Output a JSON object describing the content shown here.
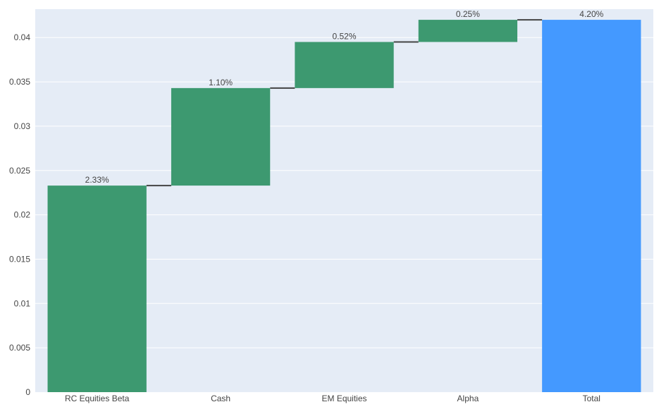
{
  "chart_data": {
    "type": "bar",
    "subtype": "waterfall",
    "categories": [
      "RC Equities Beta",
      "Cash",
      "EM Equities",
      "Alpha",
      "Total"
    ],
    "values": [
      0.0233,
      0.011,
      0.0052,
      0.0025,
      0.042
    ],
    "measures": [
      "relative",
      "relative",
      "relative",
      "relative",
      "total"
    ],
    "data_labels": [
      "2.33%",
      "1.10%",
      "0.52%",
      "0.25%",
      "4.20%"
    ],
    "ylim": [
      0,
      0.0432
    ],
    "yticks": [
      0,
      0.005,
      0.01,
      0.015,
      0.02,
      0.025,
      0.03,
      0.035,
      0.04
    ],
    "ytick_labels": [
      "0",
      "0.005",
      "0.01",
      "0.015",
      "0.02",
      "0.025",
      "0.03",
      "0.035",
      "0.04"
    ],
    "grid": true,
    "title": "",
    "xlabel": "",
    "ylabel": "",
    "colors": {
      "increase": "#3d9970",
      "total": "#4499ff",
      "plot_bg": "#e5ecf6",
      "grid": "#ffffff",
      "connector": "#444444"
    }
  }
}
